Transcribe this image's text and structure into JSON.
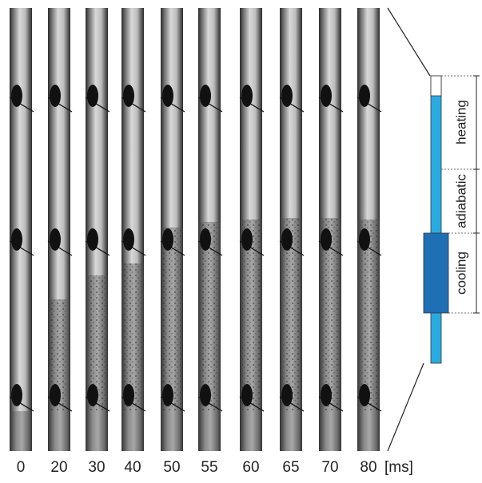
{
  "frames": {
    "labels": [
      "0",
      "20",
      "30",
      "40",
      "50",
      "55",
      "60",
      "65",
      "70",
      "80"
    ],
    "unit": "[ms]"
  },
  "diagram": {
    "heating": "heating",
    "adiabatic": "adiabatic",
    "cooling": "cooling"
  }
}
